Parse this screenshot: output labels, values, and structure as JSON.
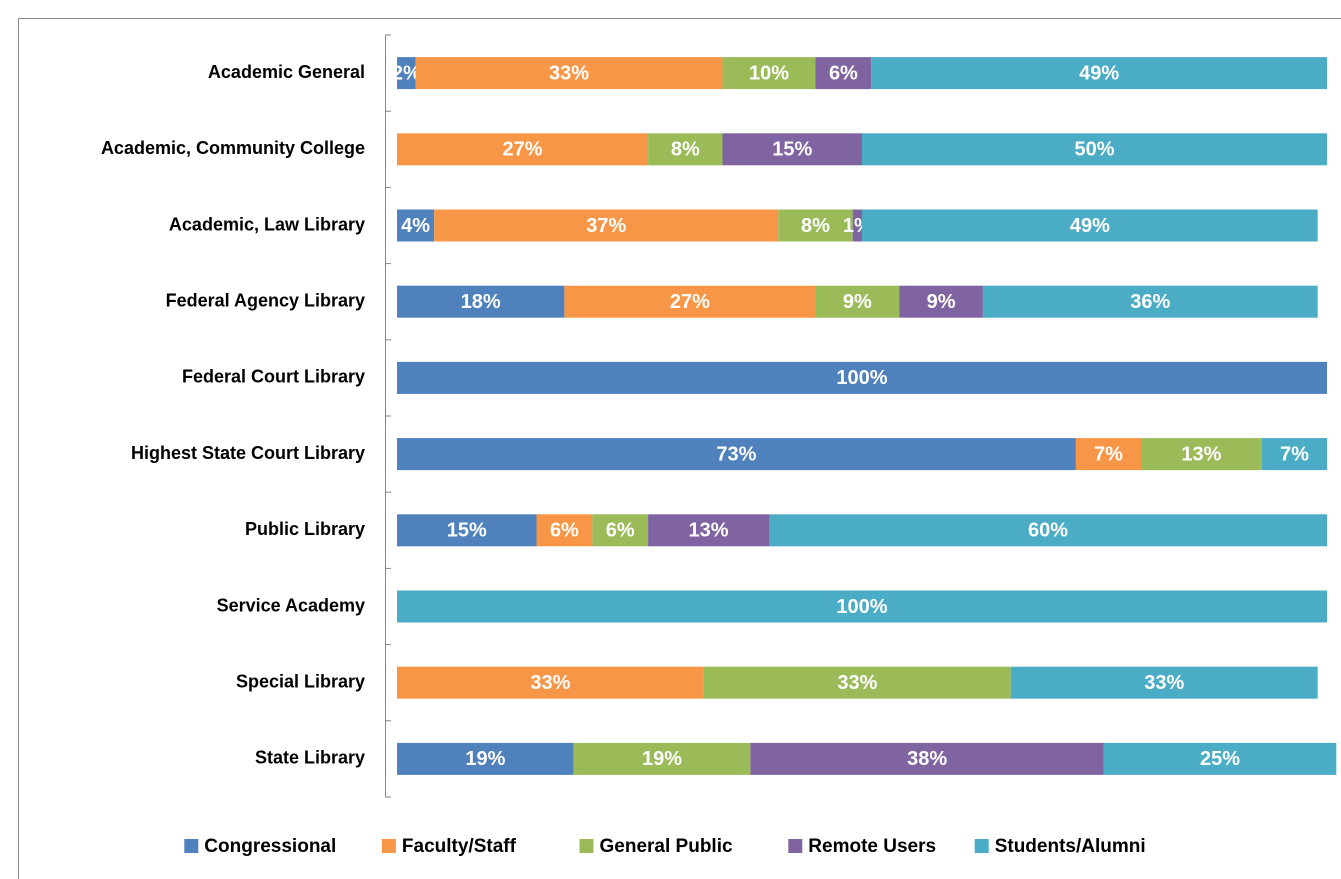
{
  "chart_data": {
    "type": "bar",
    "orientation": "horizontal",
    "stacked": true,
    "categories": [
      "Academic General",
      "Academic, Community College",
      "Academic, Law Library",
      "Federal Agency Library",
      "Federal Court Library",
      "Highest State Court Library",
      "Public Library",
      "Service Academy",
      "Special Library",
      "State Library"
    ],
    "xlim": [
      0,
      100
    ],
    "legend": "bottom",
    "series": [
      {
        "name": "Congressional",
        "color": "#4f81bd",
        "values": [
          2,
          null,
          4,
          18,
          100,
          73,
          15,
          null,
          null,
          19
        ],
        "value_labels": [
          "2%",
          null,
          "4%",
          "18%",
          "100%",
          "73%",
          "15%",
          null,
          null,
          "19%"
        ]
      },
      {
        "name": "Faculty/Staff",
        "color": "#f79646",
        "values": [
          33,
          27,
          37,
          27,
          null,
          7,
          6,
          null,
          33,
          null
        ],
        "value_labels": [
          "33%",
          "27%",
          "37%",
          "27%",
          null,
          "7%",
          "6%",
          null,
          "33%",
          null
        ]
      },
      {
        "name": "General Public",
        "color": "#9bbb59",
        "values": [
          10,
          8,
          8,
          9,
          null,
          13,
          6,
          null,
          33,
          19
        ],
        "value_labels": [
          "10%",
          "8%",
          "8%",
          "9%",
          null,
          "13%",
          "6%",
          null,
          "33%",
          "19%"
        ]
      },
      {
        "name": "Remote Users",
        "color": "#8064a2",
        "values": [
          6,
          15,
          1,
          9,
          null,
          null,
          13,
          null,
          null,
          38
        ],
        "value_labels": [
          "6%",
          "15%",
          "1%",
          "9%",
          null,
          null,
          "13%",
          null,
          null,
          "38%"
        ]
      },
      {
        "name": "Students/Alumni",
        "color": "#4bacc6",
        "values": [
          49,
          50,
          49,
          36,
          null,
          7,
          60,
          100,
          33,
          25
        ],
        "value_labels": [
          "49%",
          "50%",
          "49%",
          "36%",
          null,
          "7%",
          "60%",
          "100%",
          "33%",
          "25%"
        ]
      }
    ]
  }
}
